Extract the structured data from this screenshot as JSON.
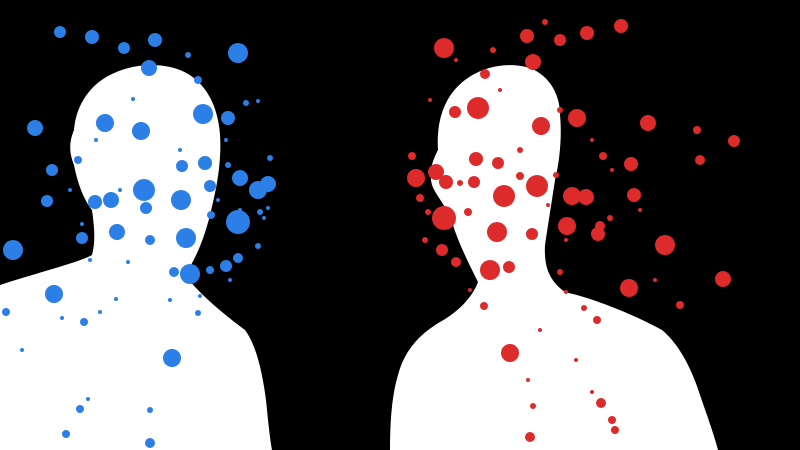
{
  "scene": {
    "background_color": "#000000",
    "silhouette_color": "#ffffff",
    "figures": [
      {
        "name": "left-figure",
        "dot_color": "#2b7fe6",
        "dot_count": 75
      },
      {
        "name": "right-figure",
        "dot_color": "#dd2a2a",
        "dot_count": 80
      }
    ]
  }
}
